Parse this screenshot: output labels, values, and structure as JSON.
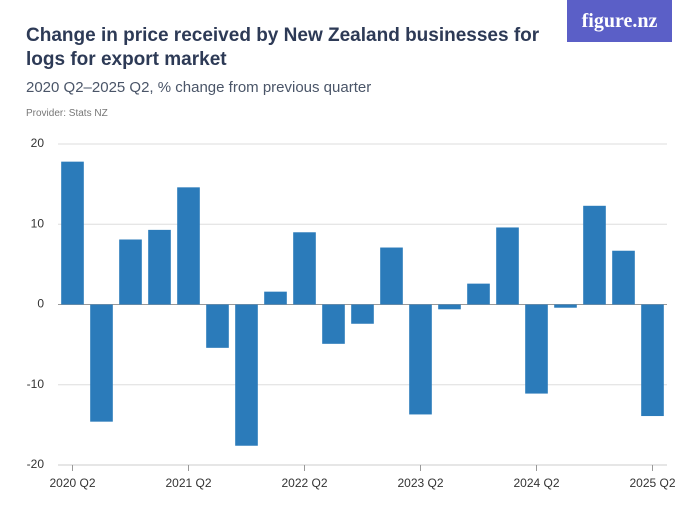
{
  "logo": "figure.nz",
  "chart_data": {
    "type": "bar",
    "title": "Change in price received by New Zealand businesses for logs for export market",
    "subtitle": "2020 Q2–2025 Q2, % change from previous quarter",
    "provider": "Provider: Stats NZ",
    "categories": [
      "2020 Q2",
      null,
      null,
      null,
      "2021 Q2",
      null,
      null,
      null,
      "2022 Q2",
      null,
      null,
      null,
      "2023 Q2",
      null,
      null,
      null,
      "2024 Q2",
      null,
      null,
      null,
      "2025 Q2"
    ],
    "values": [
      17.8,
      -14.6,
      8.1,
      9.3,
      14.6,
      -5.4,
      -17.6,
      1.6,
      9.0,
      -4.9,
      -2.4,
      7.1,
      -13.7,
      -0.6,
      2.6,
      9.6,
      -11.1,
      -0.4,
      12.3,
      6.7,
      -13.9
    ],
    "color": "#2b7bba",
    "ylim": [
      -20,
      20
    ],
    "yticks": [
      -20,
      -10,
      0,
      10,
      20
    ],
    "grid": true
  }
}
